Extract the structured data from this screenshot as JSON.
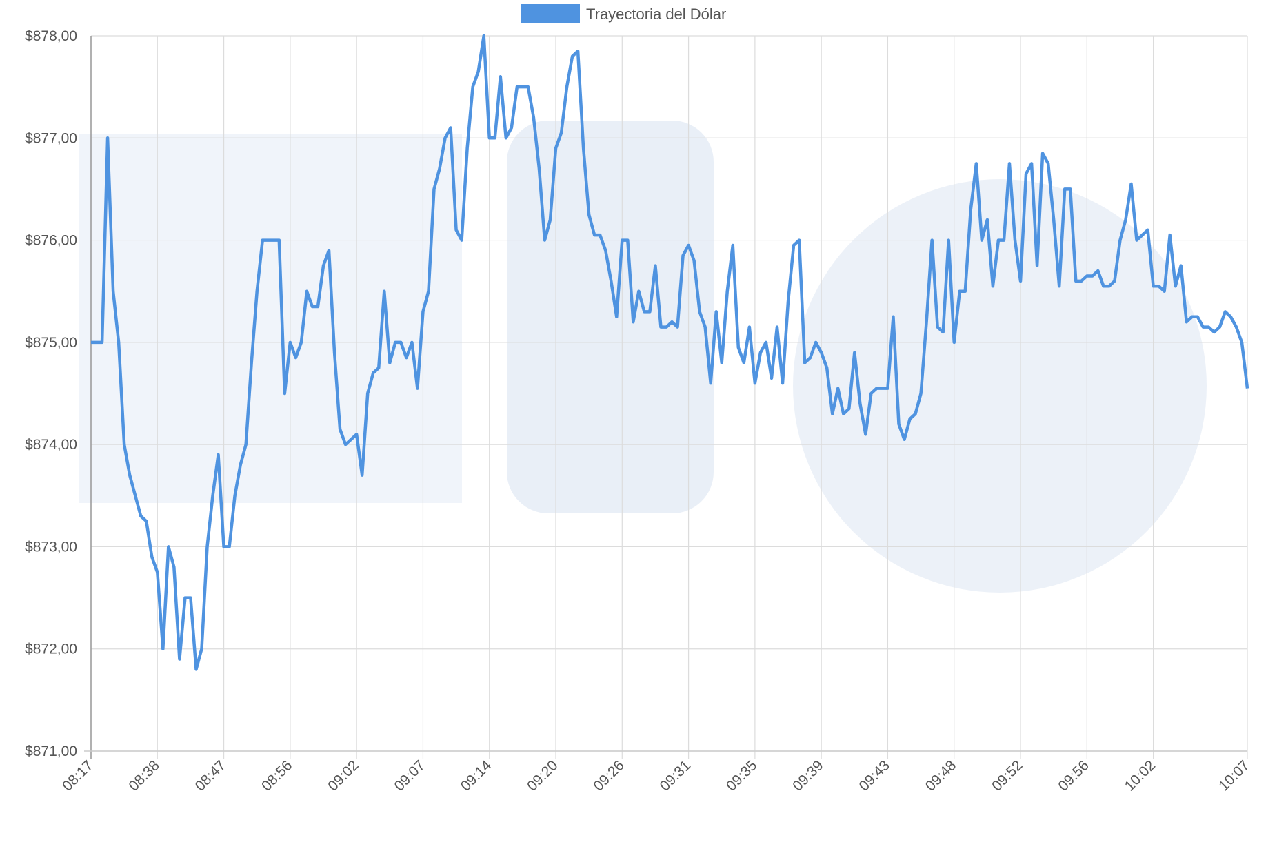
{
  "chart_data": {
    "type": "line",
    "legend": "top",
    "grid": true,
    "ylim": [
      871,
      878
    ],
    "yticks": [
      {
        "value": 871,
        "label": "$871,00"
      },
      {
        "value": 872,
        "label": "$872,00"
      },
      {
        "value": 873,
        "label": "$873,00"
      },
      {
        "value": 874,
        "label": "$874,00"
      },
      {
        "value": 875,
        "label": "$875,00"
      },
      {
        "value": 876,
        "label": "$876,00"
      },
      {
        "value": 877,
        "label": "$877,00"
      },
      {
        "value": 878,
        "label": "$878,00"
      }
    ],
    "categories": [
      "08:17",
      null,
      null,
      null,
      null,
      null,
      null,
      null,
      null,
      null,
      null,
      null,
      "08:38",
      null,
      null,
      null,
      null,
      null,
      null,
      null,
      null,
      null,
      null,
      null,
      "08:47",
      null,
      null,
      null,
      null,
      null,
      null,
      null,
      null,
      null,
      null,
      null,
      "08:56",
      null,
      null,
      null,
      null,
      null,
      null,
      null,
      null,
      null,
      null,
      null,
      "09:02",
      null,
      null,
      null,
      null,
      null,
      null,
      null,
      null,
      null,
      null,
      null,
      "09:07",
      null,
      null,
      null,
      null,
      null,
      null,
      null,
      null,
      null,
      null,
      null,
      "09:14",
      null,
      null,
      null,
      null,
      null,
      null,
      null,
      null,
      null,
      null,
      null,
      "09:20",
      null,
      null,
      null,
      null,
      null,
      null,
      null,
      null,
      null,
      null,
      null,
      "09:26",
      null,
      null,
      null,
      null,
      null,
      null,
      null,
      null,
      null,
      null,
      null,
      "09:31",
      null,
      null,
      null,
      null,
      null,
      null,
      null,
      null,
      null,
      null,
      null,
      "09:35",
      null,
      null,
      null,
      null,
      null,
      null,
      null,
      null,
      null,
      null,
      null,
      "09:39",
      null,
      null,
      null,
      null,
      null,
      null,
      null,
      null,
      null,
      null,
      null,
      "09:43",
      null,
      null,
      null,
      null,
      null,
      null,
      null,
      null,
      null,
      null,
      null,
      "09:48",
      null,
      null,
      null,
      null,
      null,
      null,
      null,
      null,
      null,
      null,
      null,
      "09:52",
      null,
      null,
      null,
      null,
      null,
      null,
      null,
      null,
      null,
      null,
      null,
      "09:56",
      null,
      null,
      null,
      null,
      null,
      null,
      null,
      null,
      null,
      null,
      null,
      "10:02",
      null,
      null,
      null,
      null,
      null,
      null,
      null,
      null,
      null,
      null,
      null,
      null,
      null,
      null,
      null,
      null,
      "10:07"
    ],
    "series": [
      {
        "name": "Trayectoria del Dólar",
        "color": "#4f93e0",
        "values": [
          875,
          875,
          875,
          877,
          875.5,
          875,
          874,
          873.7,
          873.5,
          873.3,
          873.25,
          872.9,
          872.75,
          872,
          873,
          872.8,
          871.9,
          872.5,
          872.5,
          871.8,
          872,
          873,
          873.5,
          873.9,
          873,
          873,
          873.5,
          873.8,
          874,
          874.8,
          875.5,
          876,
          876,
          876,
          876,
          874.5,
          875,
          874.85,
          875,
          875.5,
          875.35,
          875.35,
          875.75,
          875.9,
          874.9,
          874.15,
          874,
          874.05,
          874.1,
          873.7,
          874.5,
          874.7,
          874.75,
          875.5,
          874.8,
          875,
          875,
          874.85,
          875,
          874.55,
          875.3,
          875.5,
          876.5,
          876.7,
          877,
          877.1,
          876.1,
          876,
          876.9,
          877.5,
          877.65,
          878,
          877,
          877,
          877.6,
          877,
          877.1,
          877.5,
          877.5,
          877.5,
          877.2,
          876.7,
          876,
          876.2,
          876.9,
          877.05,
          877.5,
          877.8,
          877.85,
          876.9,
          876.25,
          876.05,
          876.05,
          875.9,
          875.6,
          875.25,
          876,
          876,
          875.2,
          875.5,
          875.3,
          875.3,
          875.75,
          875.15,
          875.15,
          875.2,
          875.15,
          875.85,
          875.95,
          875.8,
          875.3,
          875.15,
          874.6,
          875.3,
          874.8,
          875.5,
          875.95,
          874.95,
          874.8,
          875.15,
          874.6,
          874.9,
          875,
          874.65,
          875.15,
          874.6,
          875.4,
          875.95,
          876,
          874.8,
          874.85,
          875,
          874.9,
          874.75,
          874.3,
          874.55,
          874.3,
          874.35,
          874.9,
          874.4,
          874.1,
          874.5,
          874.55,
          874.55,
          874.55,
          875.25,
          874.2,
          874.05,
          874.25,
          874.3,
          874.5,
          875.2,
          876,
          875.15,
          875.1,
          876,
          875,
          875.5,
          875.5,
          876.3,
          876.75,
          876,
          876.2,
          875.55,
          876,
          876,
          876.75,
          876,
          875.6,
          876.65,
          876.75,
          875.75,
          876.85,
          876.75,
          876.2,
          875.55,
          876.5,
          876.5,
          875.6,
          875.6,
          875.65,
          875.65,
          875.7,
          875.55,
          875.55,
          875.6,
          876,
          876.2,
          876.55,
          876,
          876.05,
          876.1,
          875.55,
          875.55,
          875.5,
          876.05,
          875.55,
          875.75,
          875.2,
          875.25,
          875.25,
          875.15,
          875.15,
          875.1,
          875.15,
          875.3,
          875.25,
          875.15,
          875,
          874.55
        ]
      }
    ]
  }
}
